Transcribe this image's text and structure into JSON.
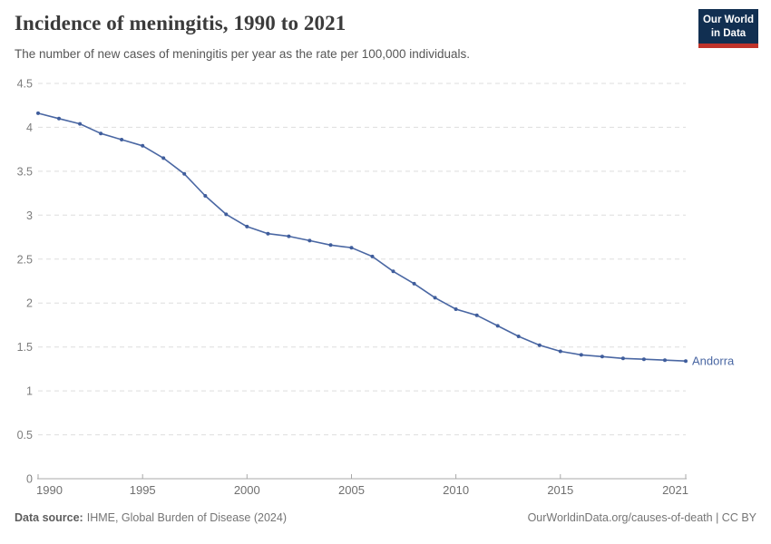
{
  "header": {
    "title": "Incidence of meningitis, 1990 to 2021",
    "subtitle": "The number of new cases of meningitis per year as the rate per 100,000 individuals.",
    "logo": {
      "line1": "Our World",
      "line2": "in Data"
    }
  },
  "footer": {
    "source_label": "Data source:",
    "source_text": "IHME, Global Burden of Disease (2024)",
    "attribution": "OurWorldinData.org/causes-of-death | CC BY"
  },
  "colors": {
    "line": "#4a67a3",
    "marker": "#3f5d9c",
    "entity_label": "#4a67a3",
    "gridline": "#dddddd",
    "axis": "#a8a8a8",
    "logo_bg": "#112f51",
    "logo_accent": "#bf332a"
  },
  "chart_data": {
    "type": "line",
    "title": "Incidence of meningitis, 1990 to 2021",
    "subtitle": "The number of new cases of meningitis per year as the rate per 100,000 individuals.",
    "xlabel": "",
    "ylabel": "",
    "x": [
      1990,
      1991,
      1992,
      1993,
      1994,
      1995,
      1996,
      1997,
      1998,
      1999,
      2000,
      2001,
      2002,
      2003,
      2004,
      2005,
      2006,
      2007,
      2008,
      2009,
      2010,
      2011,
      2012,
      2013,
      2014,
      2015,
      2016,
      2017,
      2018,
      2019,
      2020,
      2021
    ],
    "series": [
      {
        "name": "Andorra",
        "values": [
          4.16,
          4.1,
          4.04,
          3.93,
          3.86,
          3.79,
          3.65,
          3.47,
          3.22,
          3.01,
          2.87,
          2.79,
          2.76,
          2.71,
          2.66,
          2.63,
          2.53,
          2.36,
          2.22,
          2.06,
          1.93,
          1.86,
          1.74,
          1.62,
          1.52,
          1.45,
          1.41,
          1.39,
          1.37,
          1.36,
          1.35,
          1.34
        ]
      }
    ],
    "ylim": [
      0,
      4.5
    ],
    "yticks": [
      0,
      0.5,
      1,
      1.5,
      2,
      2.5,
      3,
      3.5,
      4,
      4.5
    ],
    "xticks": [
      1990,
      1995,
      2000,
      2005,
      2010,
      2015,
      2021
    ],
    "grid": true,
    "legend": "entity-label-at-line-end"
  }
}
